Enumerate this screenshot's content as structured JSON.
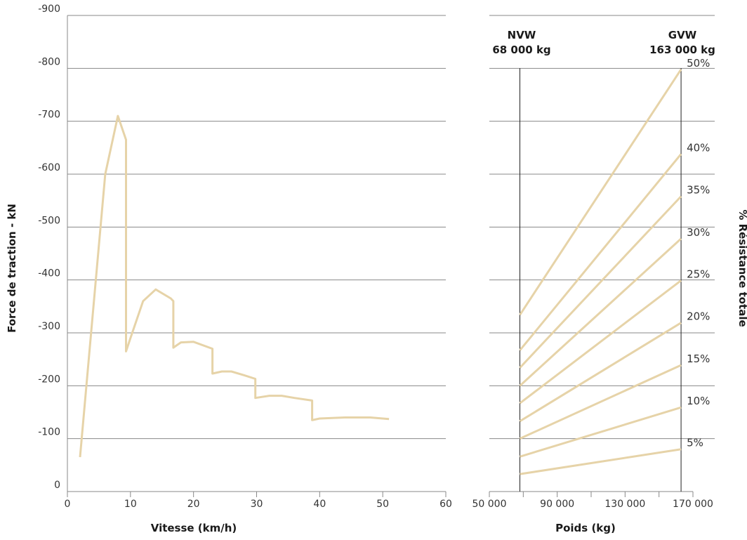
{
  "colors": {
    "curve": "#e6d3a8",
    "grid": "#888888",
    "text": "#1a1a1a"
  },
  "chart_data": [
    {
      "type": "line",
      "title": "",
      "xlabel": "Vitesse (km/h)",
      "ylabel": "Force de traction - kN",
      "xlim": [
        0,
        60
      ],
      "ylim": [
        0,
        -900
      ],
      "x_ticks": [
        "0",
        "10",
        "20",
        "30",
        "40",
        "50",
        "60"
      ],
      "y_ticks": [
        "0",
        "-100",
        "-200",
        "-300",
        "-400",
        "-500",
        "-600",
        "-700",
        "-800",
        "-900"
      ],
      "grid": "horizontal",
      "series": [
        {
          "x": [
            2,
            6,
            8,
            9.3,
            9.3,
            10,
            12,
            14,
            16.4,
            16.8,
            16.8,
            18,
            20,
            23,
            23,
            24.5,
            26,
            28,
            29.8,
            29.8,
            32,
            34,
            36,
            38.8,
            38.8,
            40,
            44,
            48,
            51
          ],
          "y": [
            -65,
            -600,
            -710,
            -665,
            -265,
            -290,
            -360,
            -382,
            -365,
            -360,
            -272,
            -282,
            -283,
            -270,
            -223,
            -227,
            -227,
            -220,
            -213,
            -177,
            -181,
            -181,
            -177,
            -172,
            -135,
            -138,
            -140,
            -140,
            -137
          ]
        }
      ]
    },
    {
      "type": "line",
      "title": "",
      "xlabel": "Poids (kg)",
      "ylabel": "% Résistance totale",
      "xlim": [
        50000,
        170000
      ],
      "x_ticks": [
        "50 000",
        "90 000",
        "130 000",
        "170 000"
      ],
      "reference_lines": [
        {
          "label": "NVW",
          "value_label": "68 000 kg",
          "x": 68000
        },
        {
          "label": "GVW",
          "value_label": "163 000 kg",
          "x": 163000
        }
      ],
      "series": [
        {
          "name": "5%",
          "x": [
            68000,
            163000
          ],
          "y": [
            -33,
            -80
          ]
        },
        {
          "name": "10%",
          "x": [
            68000,
            163000
          ],
          "y": [
            -66,
            -159
          ]
        },
        {
          "name": "15%",
          "x": [
            68000,
            163000
          ],
          "y": [
            -100,
            -239
          ]
        },
        {
          "name": "20%",
          "x": [
            68000,
            163000
          ],
          "y": [
            -133,
            -319
          ]
        },
        {
          "name": "25%",
          "x": [
            68000,
            163000
          ],
          "y": [
            -167,
            -399
          ]
        },
        {
          "name": "30%",
          "x": [
            68000,
            163000
          ],
          "y": [
            -200,
            -478
          ]
        },
        {
          "name": "35%",
          "x": [
            68000,
            163000
          ],
          "y": [
            -234,
            -558
          ]
        },
        {
          "name": "40%",
          "x": [
            68000,
            163000
          ],
          "y": [
            -267,
            -638
          ]
        },
        {
          "name": "50%",
          "x": [
            68000,
            163000
          ],
          "y": [
            -334,
            -798
          ]
        }
      ]
    }
  ]
}
